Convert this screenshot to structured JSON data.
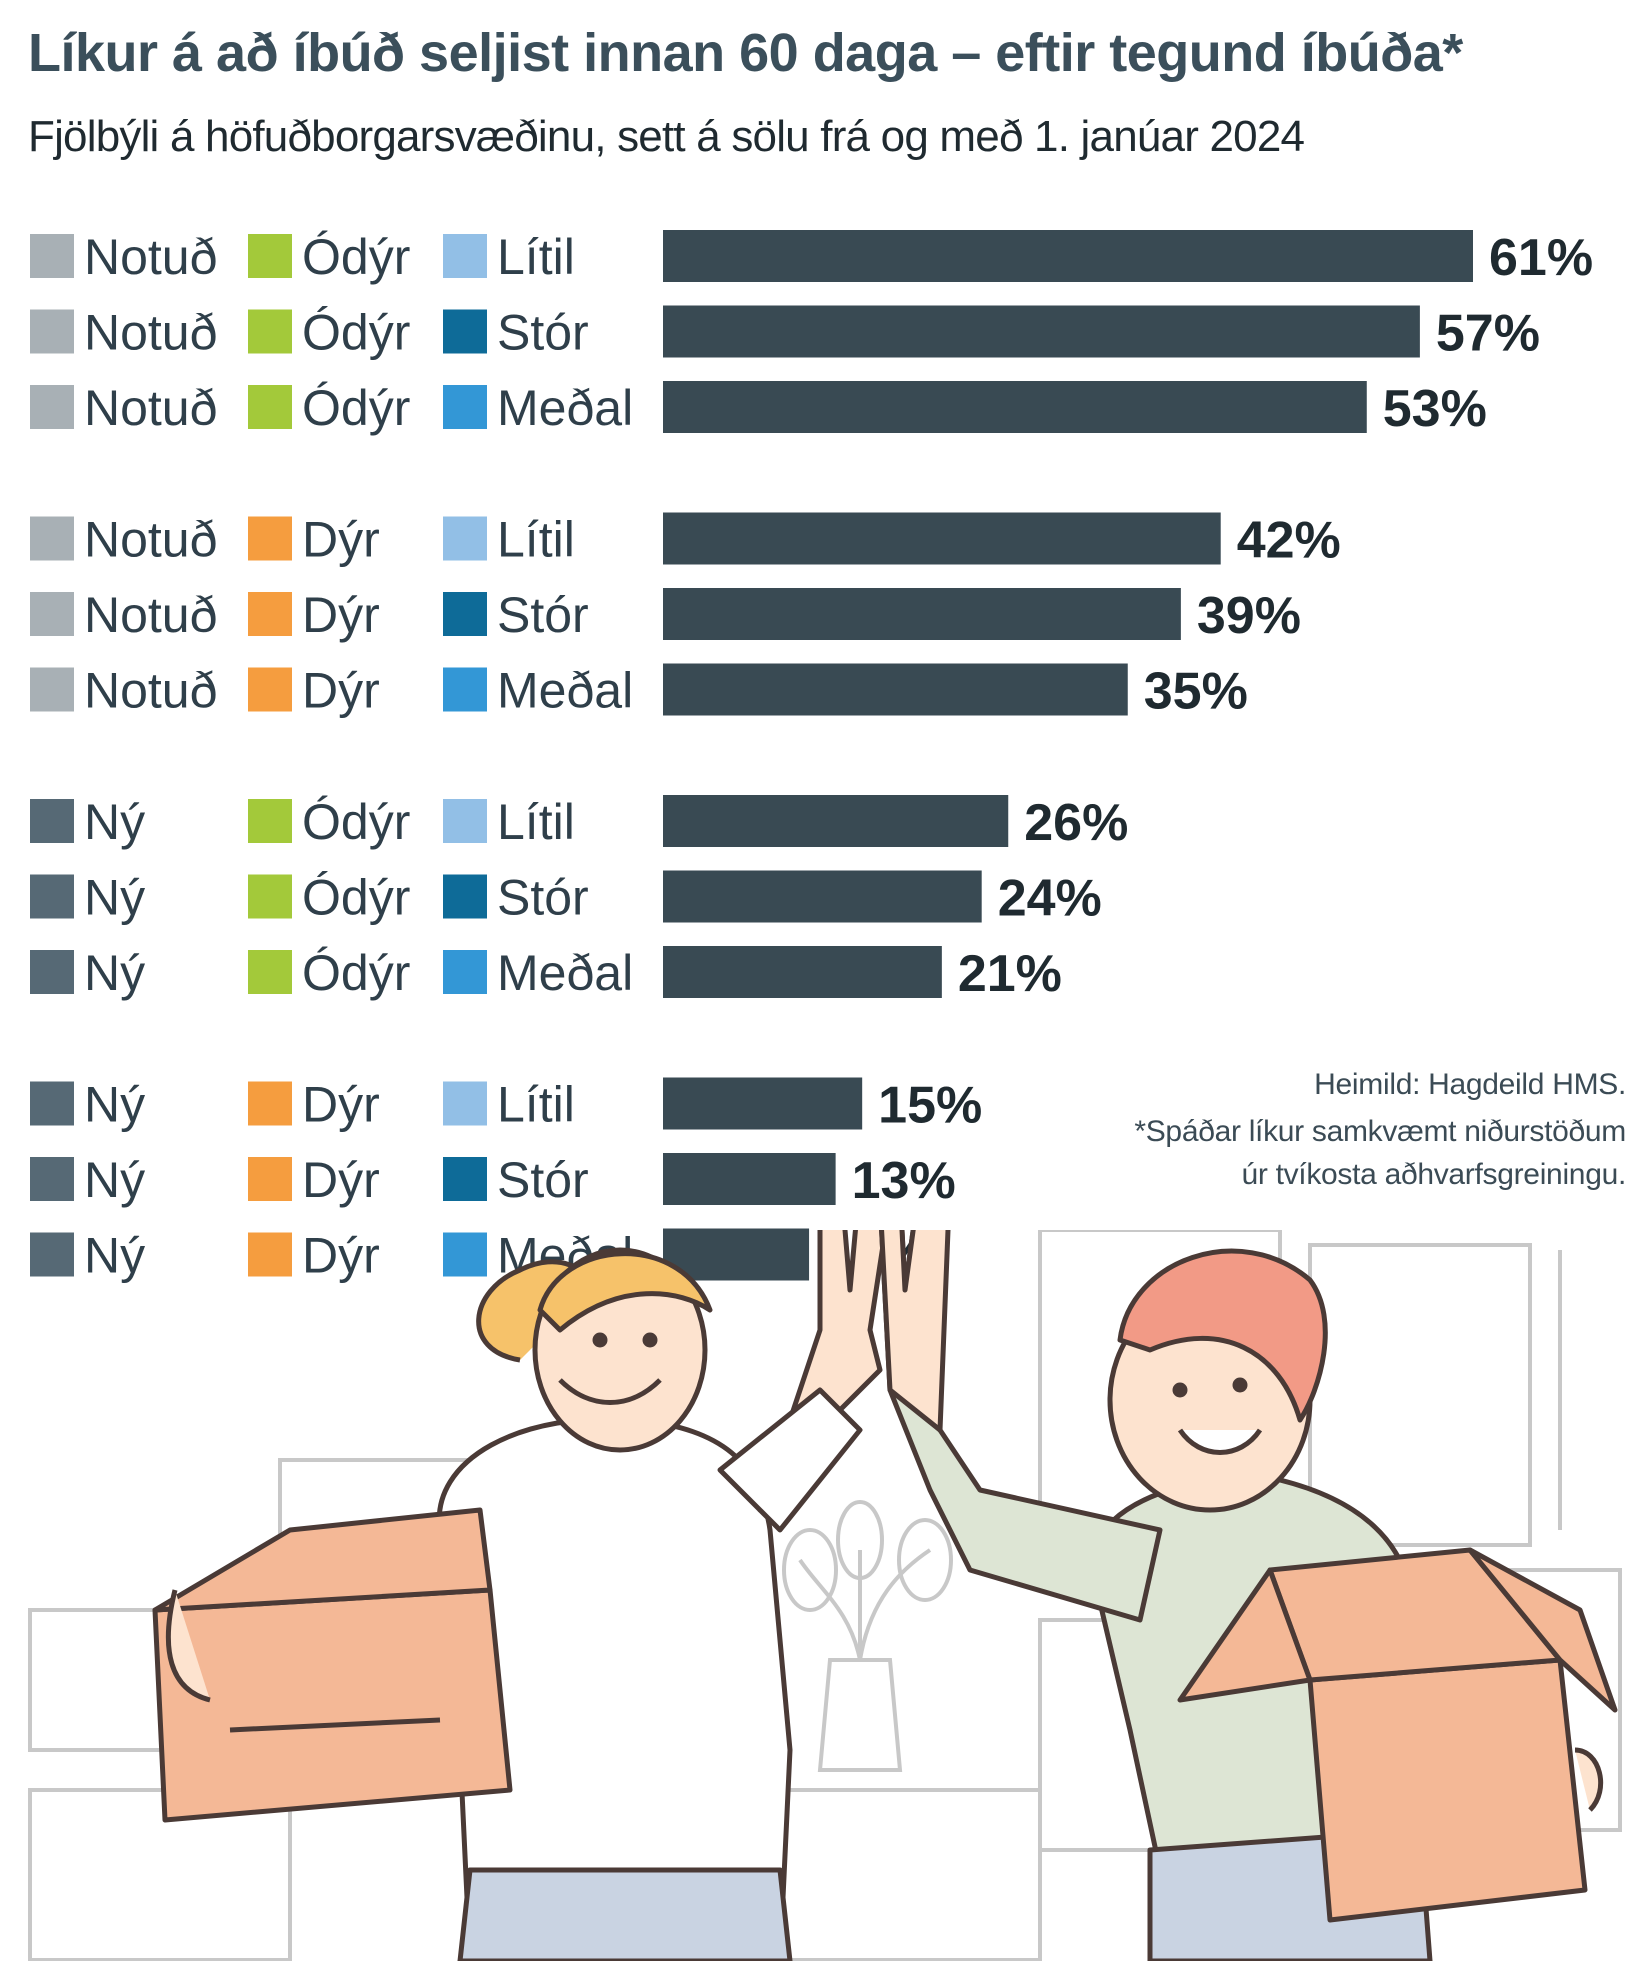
{
  "chart_data": {
    "type": "bar",
    "orientation": "horizontal",
    "title": "Líkur á að íbúð seljist innan 60 daga – eftir tegund íbúða*",
    "subtitle": "Fjölbýli á höfuðborgarsvæðinu, sett á sölu frá og með 1. janúar 2024",
    "value_suffix": "%",
    "xlim": [
      0,
      61
    ],
    "grid": false,
    "bar_color": "#394a53",
    "category_colors": {
      "Notuð": "#a8b0b5",
      "Ný": "#566975",
      "Ódýr": "#a3c93a",
      "Dýr": "#f59d3f",
      "Lítil": "#92bfe6",
      "Stór": "#0e6b98",
      "Meðal": "#3397d6"
    },
    "groups": [
      {
        "rows": [
          {
            "labels": [
              "Notuð",
              "Ódýr",
              "Lítil"
            ],
            "value": 61
          },
          {
            "labels": [
              "Notuð",
              "Ódýr",
              "Stór"
            ],
            "value": 57
          },
          {
            "labels": [
              "Notuð",
              "Ódýr",
              "Meðal"
            ],
            "value": 53
          }
        ]
      },
      {
        "rows": [
          {
            "labels": [
              "Notuð",
              "Dýr",
              "Lítil"
            ],
            "value": 42
          },
          {
            "labels": [
              "Notuð",
              "Dýr",
              "Stór"
            ],
            "value": 39
          },
          {
            "labels": [
              "Notuð",
              "Dýr",
              "Meðal"
            ],
            "value": 35
          }
        ]
      },
      {
        "rows": [
          {
            "labels": [
              "Ný",
              "Ódýr",
              "Lítil"
            ],
            "value": 26
          },
          {
            "labels": [
              "Ný",
              "Ódýr",
              "Stór"
            ],
            "value": 24
          },
          {
            "labels": [
              "Ný",
              "Ódýr",
              "Meðal"
            ],
            "value": 21
          }
        ]
      },
      {
        "rows": [
          {
            "labels": [
              "Ný",
              "Dýr",
              "Lítil"
            ],
            "value": 15
          },
          {
            "labels": [
              "Ný",
              "Dýr",
              "Stór"
            ],
            "value": 13
          },
          {
            "labels": [
              "Ný",
              "Dýr",
              "Meðal"
            ],
            "value": 11
          }
        ]
      }
    ]
  },
  "notes": {
    "source": "Heimild: Hagdeild HMS.",
    "footnote_line1": "*Spáðar líkur samkvæmt niðurstöðum",
    "footnote_line2": "úr tvíkosta aðhvarfsgreiningu."
  },
  "illustration": {
    "description_icon": "two-people-high-five-moving-boxes",
    "colors": {
      "box": "#f4b896",
      "woman_hair": "#f6c26a",
      "man_hair": "#f29a86",
      "skin": "#fde3cf",
      "man_shirt": "#dde5d4",
      "jeans": "#c9d3e2",
      "line": "#4a3a36",
      "background_line": "#c8c8c8"
    }
  }
}
